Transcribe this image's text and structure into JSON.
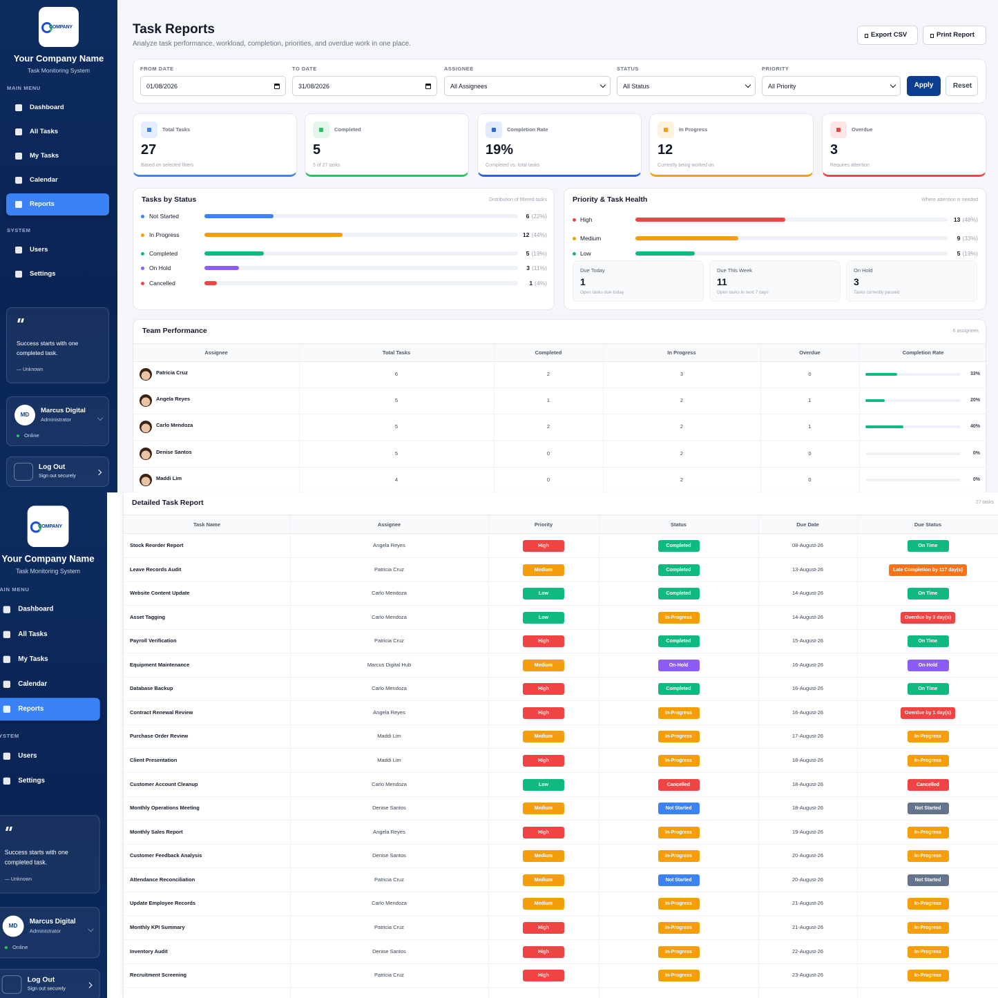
{
  "sidebar": {
    "logo": "COMPANY",
    "company": "Your Company Name",
    "tagline": "Task Monitoring System",
    "main_menu_label": "MAIN MENU",
    "main_menu": [
      "Dashboard",
      "All Tasks",
      "My Tasks",
      "Calendar",
      "Reports"
    ],
    "active_index": 4,
    "system_label": "SYSTEM",
    "system_menu": [
      "Users",
      "Settings"
    ],
    "quote": "Success starts with one completed task.",
    "quote_author": "— Unknown",
    "user": {
      "initials": "MD",
      "name": "Marcus Digital",
      "role": "Administrator",
      "status": "Online"
    },
    "logout": {
      "label": "Log Out",
      "sub": "Sign out securely"
    }
  },
  "header": {
    "title": "Task Reports",
    "subtitle": "Analyze task performance, workload, completion, priorities, and overdue work in one place.",
    "actions": [
      "Export CSV",
      "Print Report"
    ]
  },
  "filters": {
    "fields": [
      {
        "label": "FROM DATE",
        "value": "01/08/2026"
      },
      {
        "label": "TO DATE",
        "value": "31/08/2026"
      },
      {
        "label": "ASSIGNEE",
        "value": "All Assignees"
      },
      {
        "label": "STATUS",
        "value": "All Status"
      },
      {
        "label": "PRIORITY",
        "value": "All Priority"
      }
    ],
    "buttons": [
      "Apply",
      "Reset"
    ]
  },
  "stats": [
    {
      "label": "Total Tasks",
      "value": 27,
      "note": "Based on selected filters",
      "color": "#3b82f6"
    },
    {
      "label": "Completed",
      "value": 5,
      "note": "5 of 27 tasks",
      "color": "#22c55e"
    },
    {
      "label": "Completion Rate",
      "value": 19,
      "value_label": "19%",
      "note": "Completed vs. total tasks",
      "color": "#2563eb"
    },
    {
      "label": "In Progress",
      "value": 12,
      "note": "Currently being worked on",
      "color": "#f59e0b"
    },
    {
      "label": "Overdue",
      "value": 3,
      "note": "Requires attention",
      "color": "#ef4444"
    }
  ],
  "status_chart": {
    "title": "Tasks by Status",
    "subtitle": "Distribution of filtered tasks",
    "xlim": [
      0,
      100
    ],
    "items": [
      {
        "name": "Not Started",
        "count": 6,
        "percent": 22,
        "percent_label": "(22%)",
        "color": "#3b82f6"
      },
      {
        "name": "In Progress",
        "count": 12,
        "percent": 44,
        "percent_label": "(44%)",
        "color": "#f59e0b"
      },
      {
        "name": "Completed",
        "count": 5,
        "percent": 19,
        "percent_label": "(19%)",
        "color": "#10b981"
      },
      {
        "name": "On Hold",
        "count": 3,
        "percent": 11,
        "percent_label": "(11%)",
        "color": "#8b5cf6"
      },
      {
        "name": "Cancelled",
        "count": 1,
        "percent": 4,
        "percent_label": "(4%)",
        "color": "#ef4444"
      }
    ]
  },
  "priority_chart": {
    "title": "Priority & Task Health",
    "subtitle": "Where attention is needed",
    "xlim": [
      0,
      100
    ],
    "items": [
      {
        "name": "High",
        "count": 13,
        "percent": 48,
        "percent_label": "(48%)",
        "color": "#ef4444"
      },
      {
        "name": "Medium",
        "count": 9,
        "percent": 33,
        "percent_label": "(33%)",
        "color": "#f59e0b"
      },
      {
        "name": "Low",
        "count": 5,
        "percent": 19,
        "percent_label": "(19%)",
        "color": "#10b981"
      }
    ],
    "health": [
      {
        "label": "Due Today",
        "value": 1,
        "note": "Open tasks due today"
      },
      {
        "label": "Due This Week",
        "value": 11,
        "note": "Open tasks in next 7 days"
      },
      {
        "label": "On Hold",
        "value": 3,
        "note": "Tasks currently paused"
      }
    ]
  },
  "team": {
    "title": "Team Performance",
    "count_label": "6 assignees",
    "columns": [
      "Assignee",
      "Total Tasks",
      "Completed",
      "In Progress",
      "Overdue",
      "Completion Rate"
    ],
    "xlim": [
      0,
      100
    ],
    "rows": [
      {
        "name": "Patricia Cruz",
        "total": 6,
        "completed": 2,
        "in_progress": 3,
        "overdue": 0,
        "rate": 33,
        "rate_label": "33%"
      },
      {
        "name": "Angela Reyes",
        "total": 5,
        "completed": 1,
        "in_progress": 2,
        "overdue": 1,
        "rate": 20,
        "rate_label": "20%"
      },
      {
        "name": "Carlo Mendoza",
        "total": 5,
        "completed": 2,
        "in_progress": 2,
        "overdue": 1,
        "rate": 40,
        "rate_label": "40%"
      },
      {
        "name": "Denise Santos",
        "total": 5,
        "completed": 0,
        "in_progress": 2,
        "overdue": 0,
        "rate": 0,
        "rate_label": "0%"
      },
      {
        "name": "Maddi Lim",
        "total": 4,
        "completed": 0,
        "in_progress": 2,
        "overdue": 0,
        "rate": 0,
        "rate_label": "0%"
      }
    ]
  },
  "detail": {
    "title": "Detailed Task Report",
    "count_label": "27 tasks",
    "columns": [
      "Task Name",
      "Assignee",
      "Priority",
      "Status",
      "Due Date",
      "Due Status"
    ],
    "rows": [
      [
        "Stock Reorder Report",
        "Angela Reyes",
        "High",
        "Completed",
        "08-August-26",
        "On Time"
      ],
      [
        "Leave Records Audit",
        "Patricia Cruz",
        "Medium",
        "Completed",
        "13-August-26",
        "Late Completion by 117 day(s)"
      ],
      [
        "Website Content Update",
        "Carlo Mendoza",
        "Low",
        "Completed",
        "14-August-26",
        "On Time"
      ],
      [
        "Asset Tagging",
        "Carlo Mendoza",
        "Low",
        "In-Progress",
        "14-August-26",
        "Overdue by 3 day(s)"
      ],
      [
        "Payroll Verification",
        "Patricia Cruz",
        "High",
        "Completed",
        "15-August-26",
        "On Time"
      ],
      [
        "Equipment Maintenance",
        "Marcus Digital Hub",
        "Medium",
        "On-Hold",
        "16-August-26",
        "On-Hold"
      ],
      [
        "Database Backup",
        "Carlo Mendoza",
        "High",
        "Completed",
        "16-August-26",
        "On Time"
      ],
      [
        "Contract Renewal Review",
        "Angela Reyes",
        "High",
        "In-Progress",
        "16-August-26",
        "Overdue by 1 day(s)"
      ],
      [
        "Purchase Order Review",
        "Maddi Lim",
        "Medium",
        "In-Progress",
        "17-August-26",
        "In-Progress"
      ],
      [
        "Client Presentation",
        "Maddi Lim",
        "High",
        "In-Progress",
        "18-August-26",
        "In-Progress"
      ],
      [
        "Customer Account Cleanup",
        "Carlo Mendoza",
        "Low",
        "Cancelled",
        "18-August-26",
        "Cancelled"
      ],
      [
        "Monthly Operations Meeting",
        "Denise Santos",
        "Medium",
        "Not Started",
        "18-August-26",
        "Not Started"
      ],
      [
        "Monthly Sales Report",
        "Angela Reyes",
        "High",
        "In-Progress",
        "19-August-26",
        "In-Progress"
      ],
      [
        "Customer Feedback Analysis",
        "Denise Santos",
        "Medium",
        "In-Progress",
        "20-August-26",
        "In-Progress"
      ],
      [
        "Attendance Reconciliation",
        "Patricia Cruz",
        "Medium",
        "Not Started",
        "20-August-26",
        "Not Started"
      ],
      [
        "Update Employee Records",
        "Carlo Mendoza",
        "Medium",
        "In-Progress",
        "21-August-26",
        "In-Progress"
      ],
      [
        "Monthly KPI Summary",
        "Patricia Cruz",
        "High",
        "In-Progress",
        "21-August-26",
        "In-Progress"
      ],
      [
        "Inventory Audit",
        "Denise Santos",
        "High",
        "In-Progress",
        "22-August-26",
        "In-Progress"
      ],
      [
        "Recruitment Screening",
        "Patricia Cruz",
        "High",
        "In-Progress",
        "23-August-26",
        "In-Progress"
      ]
    ],
    "priority_colors": {
      "High": "#ef4444",
      "Medium": "#f59e0b",
      "Low": "#10b981"
    },
    "status_colors": {
      "Completed": "#10b981",
      "In-Progress": "#f59e0b",
      "On-Hold": "#8b5cf6",
      "Cancelled": "#ef4444",
      "Not Started": "#3b82f6"
    },
    "due_status_colors": {
      "On Time": "#10b981",
      "Late Completion by 117 day(s)": "#f97316",
      "Overdue by 3 day(s)": "#ef4444",
      "Overdue by 1 day(s)": "#ef4444",
      "On-Hold": "#8b5cf6",
      "In-Progress": "#f59e0b",
      "Cancelled": "#ef4444",
      "Not Started": "#64748b"
    }
  }
}
